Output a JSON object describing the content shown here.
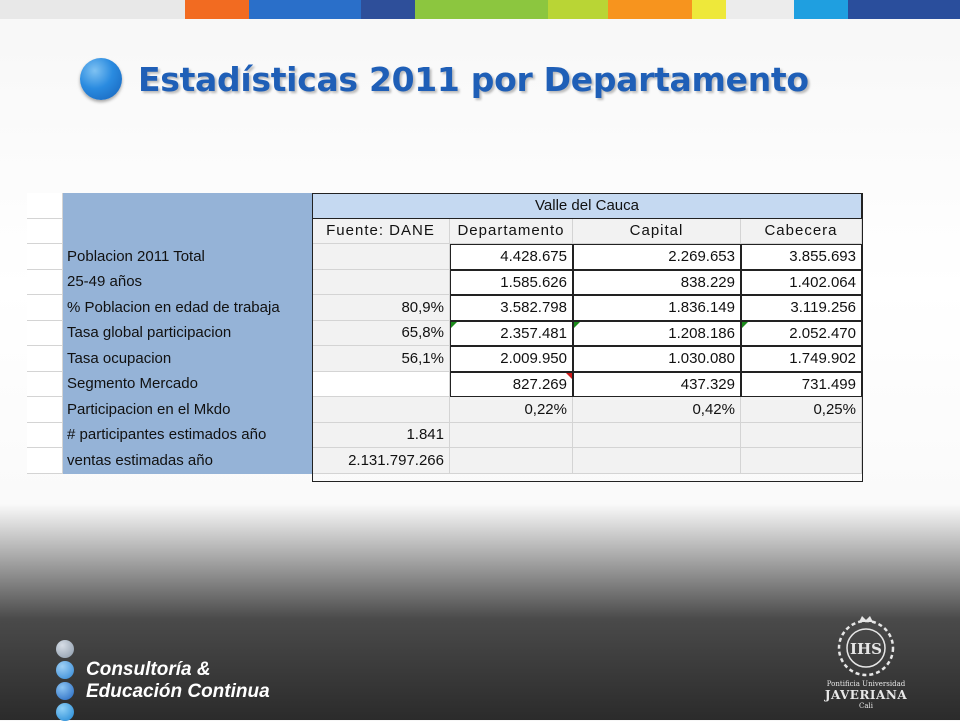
{
  "header": {
    "strip_colors": [
      "#e8e8e8",
      "#f26b21",
      "#2a6fc9",
      "#2e5aa6",
      "#8cc63f",
      "#6ab42d",
      "#b7d433",
      "#f7931e",
      "#e6e600",
      "#f0f0f0",
      "#2da0e0",
      "#2b4f9e"
    ],
    "title": "Estadísticas 2011 por Departamento"
  },
  "table": {
    "region": "Valle del Cauca",
    "source_label": "Fuente: DANE",
    "col_headers": [
      "Departamento",
      "Capital",
      "Cabecera"
    ],
    "rows": [
      {
        "label": "Poblacion 2011 Total",
        "pct": "",
        "dep": "4.428.675",
        "cap": "2.269.653",
        "cab": "3.855.693"
      },
      {
        "label": "25-49 años",
        "pct": "",
        "dep": "1.585.626",
        "cap": "838.229",
        "cab": "1.402.064"
      },
      {
        "label": "% Poblacion en edad de trabaja",
        "pct": "80,9%",
        "dep": "3.582.798",
        "cap": "1.836.149",
        "cab": "3.119.256"
      },
      {
        "label": "Tasa global participacion",
        "pct": "65,8%",
        "dep": "2.357.481",
        "cap": "1.208.186",
        "cab": "2.052.470"
      },
      {
        "label": "Tasa ocupacion",
        "pct": "56,1%",
        "dep": "2.009.950",
        "cap": "1.030.080",
        "cab": "1.749.902"
      },
      {
        "label": "Segmento Mercado",
        "pct": "",
        "dep": "827.269",
        "cap": "437.329",
        "cab": "731.499"
      },
      {
        "label": "Participacion en el Mkdo",
        "pct": "",
        "dep": "0,22%",
        "cap": "0,42%",
        "cab": "0,25%"
      },
      {
        "label": "# participantes estimados año",
        "pct": "1.841",
        "dep": "",
        "cap": "",
        "cab": ""
      },
      {
        "label": "ventas estimadas año",
        "pct": "2.131.797.266",
        "dep": "",
        "cap": "",
        "cab": ""
      }
    ]
  },
  "footer": {
    "brand_line1": "Consultoría &",
    "brand_line2": "Educación Continua",
    "crest_initials": "IHS",
    "crest_line1": "Pontificia Universidad",
    "crest_line2": "JAVERIANA",
    "crest_line3": "Cali",
    "dot_colors": [
      "#9aa7b5",
      "#4a90d9",
      "#2a6fc9",
      "#2b86d6"
    ]
  }
}
